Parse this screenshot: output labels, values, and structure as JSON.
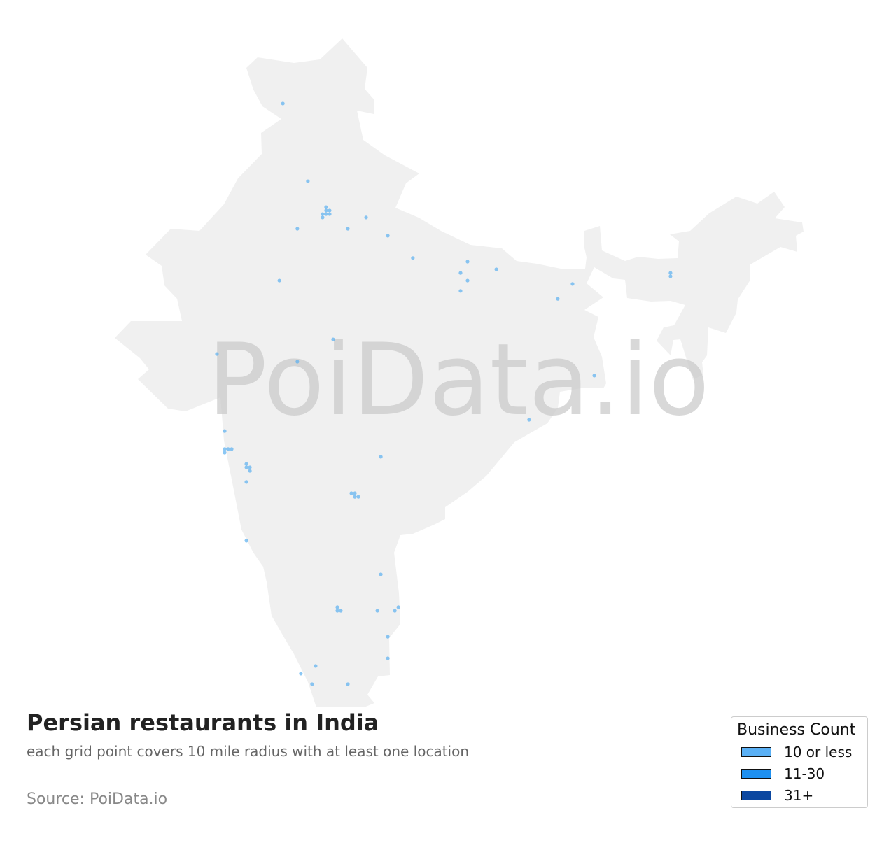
{
  "title": "Persian restaurants in India",
  "subtitle": "each grid point covers 10 mile radius with at least one location",
  "source": "Source: PoiData.io",
  "watermark": "PoiData.io",
  "colors": {
    "land": "#f0f0f0",
    "point": "#5aaff0",
    "watermark": "#c8c8c8"
  },
  "legend": {
    "title": "Business Count",
    "items": [
      {
        "label": "10 or less",
        "color": "#5ab0f5"
      },
      {
        "label": "11-30",
        "color": "#1e90f0"
      },
      {
        "label": "31+",
        "color": "#0b47a0"
      }
    ]
  },
  "points": [
    [
      75.16,
      34.29
    ],
    [
      76.23,
      31.05
    ],
    [
      77.01,
      29.97
    ],
    [
      77.01,
      29.83
    ],
    [
      77.16,
      29.83
    ],
    [
      76.86,
      29.68
    ],
    [
      77.01,
      29.68
    ],
    [
      77.16,
      29.68
    ],
    [
      76.86,
      29.54
    ],
    [
      78.72,
      29.54
    ],
    [
      75.78,
      29.07
    ],
    [
      77.94,
      29.07
    ],
    [
      79.65,
      28.78
    ],
    [
      80.72,
      27.85
    ],
    [
      83.06,
      27.7
    ],
    [
      82.76,
      27.23
    ],
    [
      84.29,
      27.38
    ],
    [
      83.06,
      26.91
    ],
    [
      82.76,
      26.48
    ],
    [
      75.01,
      26.91
    ],
    [
      87.55,
      26.77
    ],
    [
      86.92,
      26.15
    ],
    [
      91.74,
      27.23
    ],
    [
      91.74,
      27.09
    ],
    [
      77.31,
      24.46
    ],
    [
      72.34,
      23.85
    ],
    [
      75.78,
      23.53
    ],
    [
      88.48,
      22.95
    ],
    [
      85.69,
      21.11
    ],
    [
      72.67,
      20.64
    ],
    [
      72.67,
      19.89
    ],
    [
      72.82,
      19.89
    ],
    [
      72.97,
      19.89
    ],
    [
      72.67,
      19.74
    ],
    [
      73.6,
      19.27
    ],
    [
      73.6,
      19.13
    ],
    [
      73.75,
      19.13
    ],
    [
      73.75,
      18.98
    ],
    [
      73.6,
      18.52
    ],
    [
      79.35,
      19.57
    ],
    [
      78.09,
      18.05
    ],
    [
      78.24,
      18.05
    ],
    [
      78.24,
      17.9
    ],
    [
      78.39,
      17.9
    ],
    [
      73.6,
      16.07
    ],
    [
      79.35,
      14.67
    ],
    [
      77.49,
      13.3
    ],
    [
      77.49,
      13.15
    ],
    [
      77.64,
      13.15
    ],
    [
      79.2,
      13.15
    ],
    [
      79.95,
      13.15
    ],
    [
      80.1,
      13.3
    ],
    [
      79.65,
      12.07
    ],
    [
      79.65,
      11.17
    ],
    [
      76.56,
      10.85
    ],
    [
      75.93,
      10.53
    ],
    [
      76.41,
      10.09
    ],
    [
      77.94,
      10.09
    ]
  ]
}
